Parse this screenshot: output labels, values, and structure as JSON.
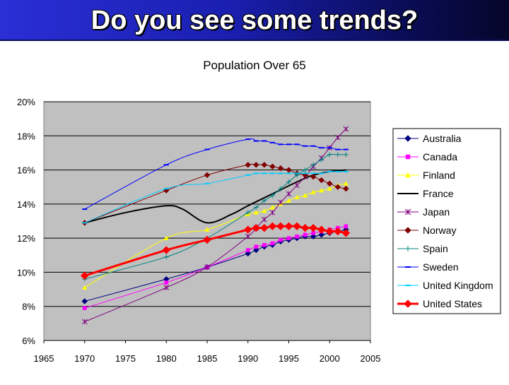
{
  "slide": {
    "title": "Do you see some trends?"
  },
  "chart_data": {
    "type": "line",
    "title": "Population Over 65",
    "xlabel": "",
    "ylabel": "",
    "xlim": [
      1965,
      2005
    ],
    "ylim": [
      6,
      20
    ],
    "x_ticks": [
      "1965",
      "1970",
      "1975",
      "1980",
      "1985",
      "1990",
      "1995",
      "2000",
      "2005"
    ],
    "y_ticks": [
      "6%",
      "8%",
      "10%",
      "12%",
      "14%",
      "16%",
      "18%",
      "20%"
    ],
    "grid": "horizontal",
    "legend_position": "right",
    "plot_background": "#c0c0c0",
    "series": [
      {
        "name": "Australia",
        "color": "#000080",
        "marker": "diamond",
        "width": 1,
        "points": [
          [
            1970,
            8.3
          ],
          [
            1980,
            9.6
          ],
          [
            1985,
            10.3
          ],
          [
            1990,
            11.1
          ],
          [
            1991,
            11.3
          ],
          [
            1992,
            11.5
          ],
          [
            1993,
            11.6
          ],
          [
            1994,
            11.8
          ],
          [
            1995,
            11.9
          ],
          [
            1996,
            12.0
          ],
          [
            1997,
            12.1
          ],
          [
            1998,
            12.1
          ],
          [
            1999,
            12.2
          ],
          [
            2000,
            12.3
          ],
          [
            2001,
            12.4
          ],
          [
            2002,
            12.5
          ]
        ]
      },
      {
        "name": "Canada",
        "color": "#ff00ff",
        "marker": "square",
        "width": 1,
        "points": [
          [
            1970,
            7.9
          ],
          [
            1980,
            9.4
          ],
          [
            1985,
            10.3
          ],
          [
            1990,
            11.3
          ],
          [
            1991,
            11.5
          ],
          [
            1992,
            11.6
          ],
          [
            1993,
            11.7
          ],
          [
            1994,
            11.9
          ],
          [
            1995,
            12.0
          ],
          [
            1996,
            12.1
          ],
          [
            1997,
            12.2
          ],
          [
            1998,
            12.3
          ],
          [
            1999,
            12.4
          ],
          [
            2000,
            12.5
          ],
          [
            2001,
            12.6
          ],
          [
            2002,
            12.7
          ]
        ]
      },
      {
        "name": "Finland",
        "color": "#ffff00",
        "marker": "triangle",
        "width": 1,
        "points": [
          [
            1970,
            9.1
          ],
          [
            1980,
            12.0
          ],
          [
            1985,
            12.5
          ],
          [
            1990,
            13.4
          ],
          [
            1991,
            13.5
          ],
          [
            1992,
            13.6
          ],
          [
            1993,
            13.8
          ],
          [
            1994,
            14.0
          ],
          [
            1995,
            14.2
          ],
          [
            1996,
            14.4
          ],
          [
            1997,
            14.5
          ],
          [
            1998,
            14.7
          ],
          [
            1999,
            14.8
          ],
          [
            2000,
            14.9
          ],
          [
            2001,
            15.1
          ],
          [
            2002,
            15.2
          ]
        ]
      },
      {
        "name": "France",
        "color": "#000000",
        "marker": "none",
        "width": 2,
        "points": [
          [
            1970,
            12.9
          ],
          [
            1975,
            13.5
          ],
          [
            1980,
            13.9
          ],
          [
            1982,
            13.7
          ],
          [
            1985,
            12.9
          ],
          [
            1988,
            13.4
          ],
          [
            1990,
            13.9
          ],
          [
            1993,
            14.6
          ],
          [
            1996,
            15.3
          ],
          [
            1998,
            15.7
          ],
          [
            2000,
            15.9
          ],
          [
            2002,
            16.0
          ]
        ]
      },
      {
        "name": "Japan",
        "color": "#800080",
        "marker": "star",
        "width": 1,
        "points": [
          [
            1970,
            7.1
          ],
          [
            1980,
            9.1
          ],
          [
            1985,
            10.3
          ],
          [
            1990,
            12.1
          ],
          [
            1991,
            12.6
          ],
          [
            1992,
            13.1
          ],
          [
            1993,
            13.5
          ],
          [
            1994,
            14.1
          ],
          [
            1995,
            14.6
          ],
          [
            1996,
            15.1
          ],
          [
            1997,
            15.6
          ],
          [
            1998,
            16.2
          ],
          [
            1999,
            16.7
          ],
          [
            2000,
            17.3
          ],
          [
            2001,
            17.9
          ],
          [
            2002,
            18.4
          ]
        ]
      },
      {
        "name": "Norway",
        "color": "#800000",
        "marker": "diamond",
        "width": 1,
        "points": [
          [
            1970,
            12.9
          ],
          [
            1980,
            14.8
          ],
          [
            1985,
            15.7
          ],
          [
            1990,
            16.3
          ],
          [
            1991,
            16.3
          ],
          [
            1992,
            16.3
          ],
          [
            1993,
            16.2
          ],
          [
            1994,
            16.1
          ],
          [
            1995,
            16.0
          ],
          [
            1996,
            15.8
          ],
          [
            1997,
            15.7
          ],
          [
            1998,
            15.6
          ],
          [
            1999,
            15.4
          ],
          [
            2000,
            15.2
          ],
          [
            2001,
            15.0
          ],
          [
            2002,
            14.9
          ]
        ]
      },
      {
        "name": "Spain",
        "color": "#008080",
        "marker": "plus",
        "width": 1,
        "points": [
          [
            1970,
            9.6
          ],
          [
            1980,
            10.9
          ],
          [
            1985,
            12.0
          ],
          [
            1990,
            13.5
          ],
          [
            1991,
            13.8
          ],
          [
            1992,
            14.2
          ],
          [
            1993,
            14.5
          ],
          [
            1994,
            14.9
          ],
          [
            1995,
            15.3
          ],
          [
            1996,
            15.7
          ],
          [
            1997,
            16.0
          ],
          [
            1998,
            16.3
          ],
          [
            1999,
            16.6
          ],
          [
            2000,
            16.9
          ],
          [
            2001,
            16.9
          ],
          [
            2002,
            16.9
          ]
        ]
      },
      {
        "name": "Sweden",
        "color": "#0000ff",
        "marker": "dash",
        "width": 1,
        "points": [
          [
            1970,
            13.7
          ],
          [
            1980,
            16.3
          ],
          [
            1985,
            17.2
          ],
          [
            1990,
            17.8
          ],
          [
            1991,
            17.7
          ],
          [
            1992,
            17.7
          ],
          [
            1993,
            17.6
          ],
          [
            1994,
            17.5
          ],
          [
            1995,
            17.5
          ],
          [
            1996,
            17.5
          ],
          [
            1997,
            17.4
          ],
          [
            1998,
            17.4
          ],
          [
            1999,
            17.3
          ],
          [
            2000,
            17.3
          ],
          [
            2001,
            17.2
          ],
          [
            2002,
            17.2
          ]
        ]
      },
      {
        "name": "United Kingdom",
        "color": "#00ccff",
        "marker": "dash",
        "width": 1,
        "points": [
          [
            1970,
            12.9
          ],
          [
            1980,
            14.9
          ],
          [
            1985,
            15.2
          ],
          [
            1990,
            15.7
          ],
          [
            1991,
            15.8
          ],
          [
            1992,
            15.8
          ],
          [
            1993,
            15.8
          ],
          [
            1994,
            15.8
          ],
          [
            1995,
            15.8
          ],
          [
            1996,
            15.8
          ],
          [
            1997,
            15.8
          ],
          [
            1998,
            15.8
          ],
          [
            1999,
            15.8
          ],
          [
            2000,
            15.9
          ],
          [
            2001,
            15.9
          ],
          [
            2002,
            15.9
          ]
        ]
      },
      {
        "name": "United States",
        "color": "#ff0000",
        "marker": "diamond",
        "width": 3,
        "points": [
          [
            1970,
            9.8
          ],
          [
            1980,
            11.3
          ],
          [
            1985,
            11.9
          ],
          [
            1990,
            12.5
          ],
          [
            1991,
            12.6
          ],
          [
            1992,
            12.6
          ],
          [
            1993,
            12.7
          ],
          [
            1994,
            12.7
          ],
          [
            1995,
            12.7
          ],
          [
            1996,
            12.7
          ],
          [
            1997,
            12.6
          ],
          [
            1998,
            12.6
          ],
          [
            1999,
            12.5
          ],
          [
            2000,
            12.4
          ],
          [
            2001,
            12.4
          ],
          [
            2002,
            12.3
          ]
        ]
      }
    ]
  }
}
